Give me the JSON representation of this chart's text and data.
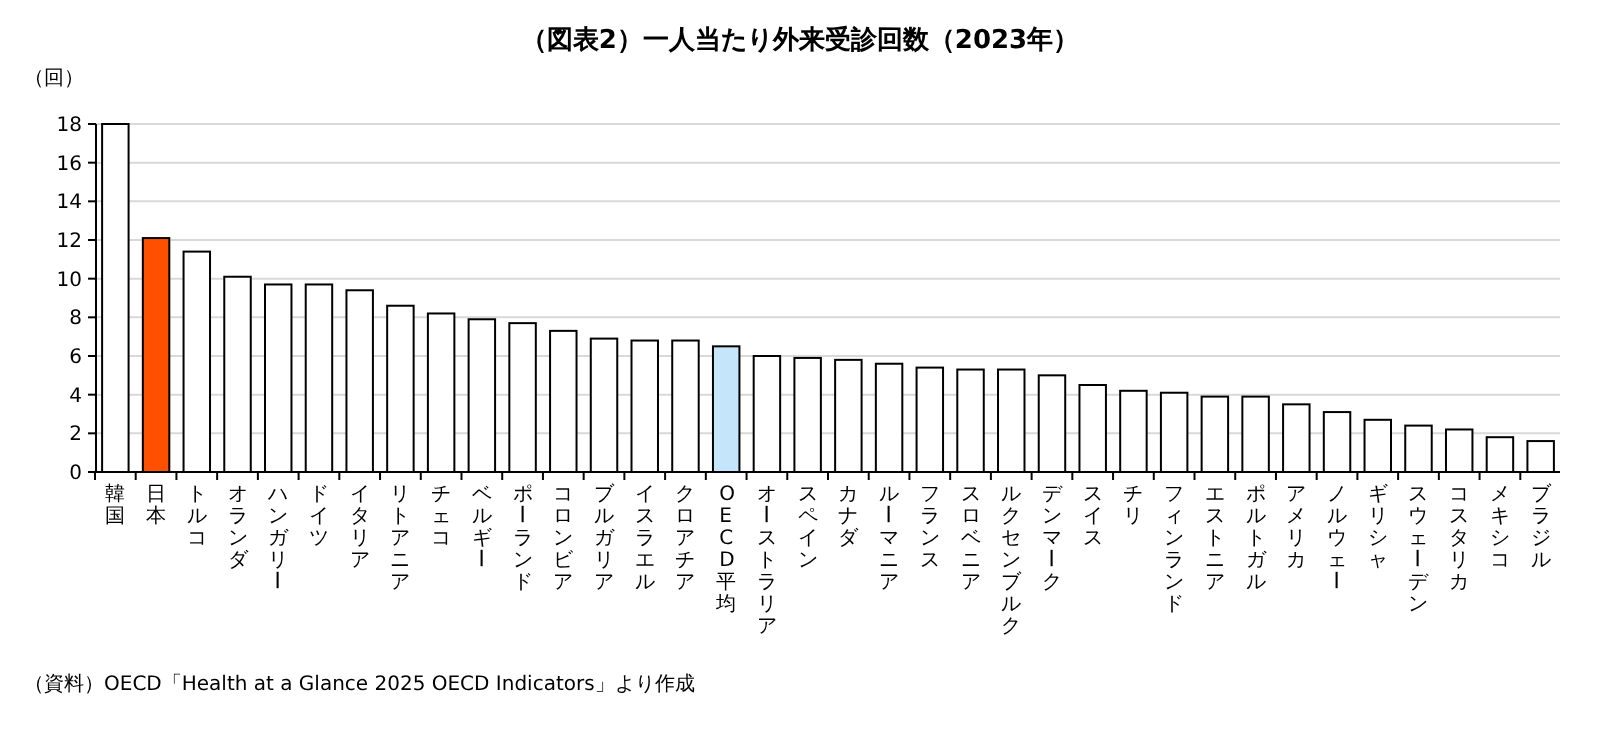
{
  "chart_data": {
    "type": "bar",
    "title": "（図表2）一人当たり外来受診回数（2023年）",
    "ylabel": "（回）",
    "categories": [
      "韓国",
      "日本",
      "トルコ",
      "オランダ",
      "ハンガリー",
      "ドイツ",
      "イタリア",
      "リトアニア",
      "チェコ",
      "ベルギー",
      "ポーランド",
      "コロンビア",
      "ブルガリア",
      "イスラエル",
      "クロアチア",
      "OECD平均",
      "オーストラリア",
      "スペイン",
      "カナダ",
      "ルーマニア",
      "フランス",
      "スロベニア",
      "ルクセンブルク",
      "デンマーク",
      "スイス",
      "チリ",
      "フィンランド",
      "エストニア",
      "ポルトガル",
      "アメリカ",
      "ノルウェー",
      "ギリシャ",
      "スウェーデン",
      "コスタリカ",
      "メキシコ",
      "ブラジル"
    ],
    "values": [
      18,
      12.1,
      11.4,
      10.1,
      9.7,
      9.7,
      9.4,
      8.6,
      8.2,
      7.9,
      7.7,
      7.3,
      6.9,
      6.8,
      6.8,
      6.5,
      6.0,
      5.9,
      5.8,
      5.6,
      5.4,
      5.3,
      5.3,
      5.0,
      4.5,
      4.2,
      4.1,
      3.9,
      3.9,
      3.5,
      3.1,
      2.7,
      2.4,
      2.2,
      1.8,
      1.6
    ],
    "colors": [
      "#ffffff",
      "#ff5000",
      "#ffffff",
      "#ffffff",
      "#ffffff",
      "#ffffff",
      "#ffffff",
      "#ffffff",
      "#ffffff",
      "#ffffff",
      "#ffffff",
      "#ffffff",
      "#ffffff",
      "#ffffff",
      "#ffffff",
      "#c5e6fa",
      "#ffffff",
      "#ffffff",
      "#ffffff",
      "#ffffff",
      "#ffffff",
      "#ffffff",
      "#ffffff",
      "#ffffff",
      "#ffffff",
      "#ffffff",
      "#ffffff",
      "#ffffff",
      "#ffffff",
      "#ffffff",
      "#ffffff",
      "#ffffff",
      "#ffffff",
      "#ffffff",
      "#ffffff",
      "#ffffff"
    ],
    "ylim": [
      0,
      18
    ],
    "yticks": [
      0,
      2,
      4,
      6,
      8,
      10,
      12,
      14,
      16,
      18
    ],
    "grid": "y",
    "annotations": [
      "（資料）OECD「Health at a Glance 2025 OECD Indicators」より作成"
    ]
  }
}
